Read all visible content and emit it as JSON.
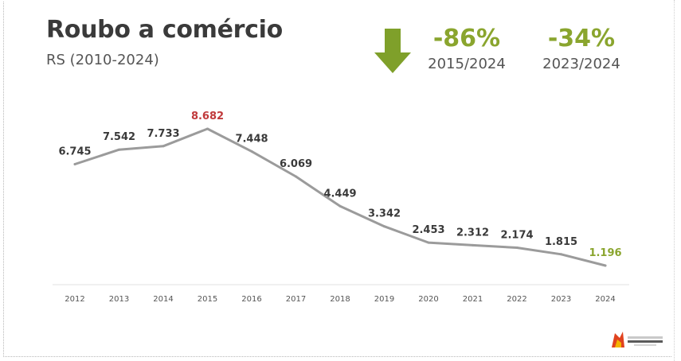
{
  "title": "Roubo a comércio",
  "subtitle": "RS (2010-2024)",
  "kpis": [
    {
      "value": "-86%",
      "period": "2015/2024"
    },
    {
      "value": "-34%",
      "period": "2023/2024"
    }
  ],
  "icon": "down-arrow-icon",
  "colors": {
    "line": "#9b9b9b",
    "peak_label": "#c0393b",
    "last_label": "#8aa52e",
    "label": "#3a3a3a",
    "kpi": "#8aa52e",
    "arrow": "#7fa02a"
  },
  "chart_data": {
    "type": "line",
    "title": "Roubo a comércio",
    "subtitle": "RS (2010-2024)",
    "xlabel": "",
    "ylabel": "",
    "x": [
      "2012",
      "2013",
      "2014",
      "2015",
      "2016",
      "2017",
      "2018",
      "2019",
      "2020",
      "2021",
      "2022",
      "2023",
      "2024"
    ],
    "series": [
      {
        "values": [
          6745,
          7542,
          7733,
          8682,
          7448,
          6069,
          4449,
          3342,
          2453,
          2312,
          2174,
          1815,
          1196
        ]
      }
    ],
    "data_labels": [
      "6.745",
      "7.542",
      "7.733",
      "8.682",
      "7.448",
      "6.069",
      "4.449",
      "3.342",
      "2.453",
      "2.312",
      "2.174",
      "1.815",
      "1.196"
    ],
    "highlight": {
      "peak_index": 3,
      "last_index": 12
    },
    "ylim": [
      1196,
      8682
    ],
    "grid": false,
    "legend": "none"
  }
}
